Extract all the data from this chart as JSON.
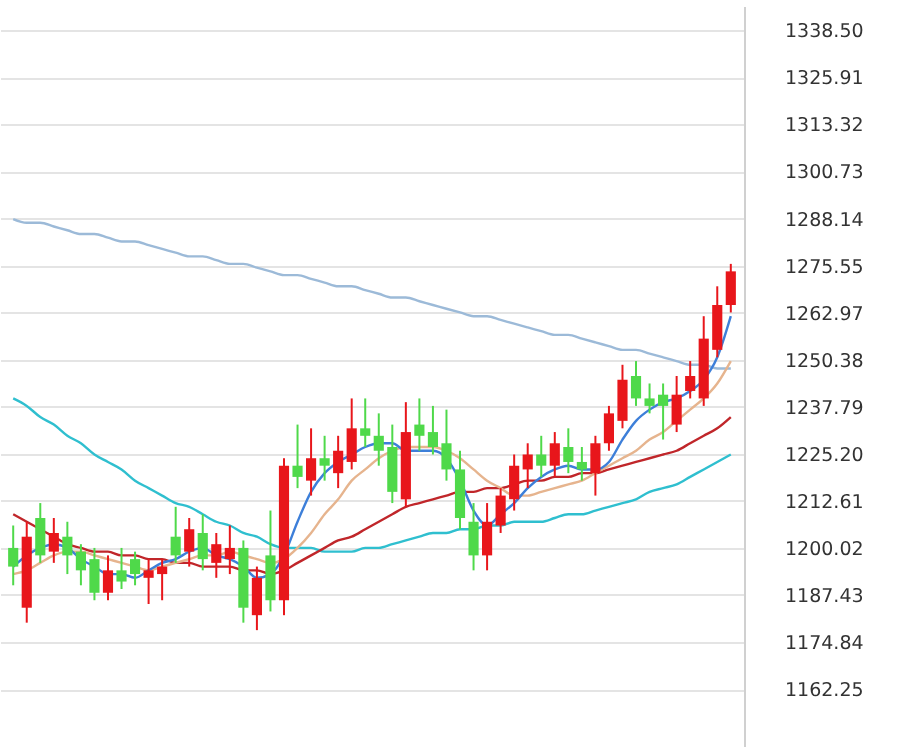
{
  "chart_data": {
    "type": "candlestick",
    "categories": [
      null,
      null,
      null,
      null,
      null,
      null,
      null,
      null,
      null,
      null,
      null,
      null,
      null,
      null,
      null,
      null,
      null,
      null,
      null,
      null,
      null,
      null,
      null,
      null,
      null,
      null,
      null,
      null,
      null,
      null,
      null,
      null,
      null,
      null,
      null,
      null,
      null,
      null,
      null,
      null,
      null,
      null,
      null,
      null,
      null,
      null,
      null,
      null,
      null,
      null,
      null,
      null,
      null,
      null
    ],
    "ohlc": [
      [
        1200,
        1206,
        1190,
        1195
      ],
      [
        1184,
        1207,
        1180,
        1203
      ],
      [
        1208,
        1212,
        1196,
        1198
      ],
      [
        1199,
        1208,
        1196,
        1204
      ],
      [
        1203,
        1207,
        1193,
        1198
      ],
      [
        1199,
        1201,
        1190,
        1194
      ],
      [
        1197,
        1200,
        1186,
        1188
      ],
      [
        1188,
        1198,
        1186,
        1194
      ],
      [
        1194,
        1200,
        1189,
        1191
      ],
      [
        1197,
        1199,
        1190,
        1193
      ],
      [
        1192,
        1197,
        1185,
        1194
      ],
      [
        1193,
        1197,
        1186,
        1195
      ],
      [
        1203,
        1211,
        1196,
        1198
      ],
      [
        1199,
        1208,
        1195,
        1205
      ],
      [
        1204,
        1209,
        1194,
        1197
      ],
      [
        1196,
        1204,
        1192,
        1201
      ],
      [
        1197,
        1206,
        1193,
        1200
      ],
      [
        1200,
        1202,
        1180,
        1184
      ],
      [
        1182,
        1195,
        1178,
        1192
      ],
      [
        1198,
        1210,
        1183,
        1186
      ],
      [
        1186,
        1224,
        1182,
        1222
      ],
      [
        1222,
        1233,
        1216,
        1219
      ],
      [
        1218,
        1232,
        1214,
        1224
      ],
      [
        1224,
        1230,
        1218,
        1222
      ],
      [
        1220,
        1230,
        1216,
        1226
      ],
      [
        1223,
        1240,
        1221,
        1232
      ],
      [
        1232,
        1240,
        1227,
        1230
      ],
      [
        1230,
        1236,
        1222,
        1226
      ],
      [
        1227,
        1233,
        1212,
        1215
      ],
      [
        1213,
        1239,
        1211,
        1231
      ],
      [
        1233,
        1240,
        1226,
        1230
      ],
      [
        1231,
        1238,
        1225,
        1227
      ],
      [
        1228,
        1237,
        1218,
        1221
      ],
      [
        1221,
        1226,
        1205,
        1208
      ],
      [
        1207,
        1212,
        1194,
        1198
      ],
      [
        1198,
        1212,
        1194,
        1207
      ],
      [
        1206,
        1216,
        1204,
        1214
      ],
      [
        1213,
        1225,
        1210,
        1222
      ],
      [
        1221,
        1228,
        1216,
        1225
      ],
      [
        1225,
        1230,
        1219,
        1222
      ],
      [
        1222,
        1231,
        1219,
        1228
      ],
      [
        1227,
        1232,
        1220,
        1223
      ],
      [
        1223,
        1227,
        1218,
        1221
      ],
      [
        1220,
        1230,
        1214,
        1228
      ],
      [
        1228,
        1238,
        1226,
        1236
      ],
      [
        1234,
        1249,
        1232,
        1245
      ],
      [
        1246,
        1250,
        1238,
        1240
      ],
      [
        1240,
        1244,
        1236,
        1238
      ],
      [
        1241,
        1244,
        1229,
        1238
      ],
      [
        1233,
        1246,
        1231,
        1241
      ],
      [
        1242,
        1250,
        1240,
        1246
      ],
      [
        1240,
        1262,
        1238,
        1256
      ],
      [
        1253,
        1270,
        1251,
        1265
      ],
      [
        1265,
        1276,
        1263,
        1274
      ]
    ],
    "colors": [
      "#4fd94a",
      "#e8161b",
      "#4fd94a",
      "#e8161b",
      "#4fd94a",
      "#4fd94a",
      "#4fd94a",
      "#e8161b",
      "#4fd94a",
      "#4fd94a",
      "#e8161b",
      "#e8161b",
      "#4fd94a",
      "#e8161b",
      "#4fd94a",
      "#e8161b",
      "#e8161b",
      "#4fd94a",
      "#e8161b",
      "#4fd94a",
      "#e8161b",
      "#4fd94a",
      "#e8161b",
      "#4fd94a",
      "#e8161b",
      "#e8161b",
      "#4fd94a",
      "#4fd94a",
      "#4fd94a",
      "#e8161b",
      "#4fd94a",
      "#4fd94a",
      "#4fd94a",
      "#4fd94a",
      "#4fd94a",
      "#e8161b",
      "#e8161b",
      "#e8161b",
      "#e8161b",
      "#4fd94a",
      "#e8161b",
      "#4fd94a",
      "#4fd94a",
      "#e8161b",
      "#e8161b",
      "#e8161b",
      "#4fd94a",
      "#4fd94a",
      "#4fd94a",
      "#e8161b",
      "#e8161b",
      "#e8161b",
      "#e8161b",
      "#e8161b"
    ],
    "series": [
      {
        "type": "line",
        "color": "#9cbad8",
        "values": [
          1288,
          1287,
          1287,
          1286,
          1285,
          1284,
          1284,
          1283,
          1282,
          1282,
          1281,
          1280,
          1279,
          1278,
          1278,
          1277,
          1276,
          1276,
          1275,
          1274,
          1273,
          1273,
          1272,
          1271,
          1270,
          1270,
          1269,
          1268,
          1267,
          1267,
          1266,
          1265,
          1264,
          1263,
          1262,
          1262,
          1261,
          1260,
          1259,
          1258,
          1257,
          1257,
          1256,
          1255,
          1254,
          1253,
          1253,
          1252,
          1251,
          1250,
          1249,
          1249,
          1248,
          1248
        ]
      },
      {
        "type": "line",
        "color": "#2fbfcf",
        "values": [
          1240,
          1238,
          1235,
          1233,
          1230,
          1228,
          1225,
          1223,
          1221,
          1218,
          1216,
          1214,
          1212,
          1211,
          1209,
          1207,
          1206,
          1204,
          1203,
          1201,
          1200,
          1200,
          1200,
          1199,
          1199,
          1199,
          1200,
          1200,
          1201,
          1202,
          1203,
          1204,
          1204,
          1205,
          1205,
          1206,
          1206,
          1207,
          1207,
          1207,
          1208,
          1209,
          1209,
          1210,
          1211,
          1212,
          1213,
          1215,
          1216,
          1217,
          1219,
          1221,
          1223,
          1225
        ]
      },
      {
        "type": "line",
        "color": "#c0262a",
        "values": [
          1209,
          1207,
          1205,
          1203,
          1201,
          1200,
          1199,
          1199,
          1198,
          1198,
          1197,
          1197,
          1196,
          1196,
          1195,
          1195,
          1195,
          1194,
          1194,
          1193,
          1194,
          1196,
          1198,
          1200,
          1202,
          1203,
          1205,
          1207,
          1209,
          1211,
          1212,
          1213,
          1214,
          1215,
          1215,
          1216,
          1216,
          1217,
          1218,
          1218,
          1219,
          1219,
          1220,
          1220,
          1221,
          1222,
          1223,
          1224,
          1225,
          1226,
          1228,
          1230,
          1232,
          1235
        ]
      },
      {
        "type": "line",
        "color": "#e6b48e",
        "values": [
          1193,
          1194,
          1196,
          1198,
          1199,
          1199,
          1198,
          1197,
          1196,
          1195,
          1194,
          1195,
          1196,
          1197,
          1198,
          1198,
          1199,
          1198,
          1197,
          1196,
          1197,
          1200,
          1204,
          1209,
          1213,
          1218,
          1221,
          1224,
          1226,
          1227,
          1227,
          1227,
          1226,
          1224,
          1221,
          1218,
          1216,
          1214,
          1214,
          1215,
          1216,
          1217,
          1218,
          1220,
          1222,
          1224,
          1226,
          1229,
          1231,
          1234,
          1237,
          1240,
          1244,
          1250
        ]
      },
      {
        "type": "line",
        "color": "#3d7fd9",
        "values": [
          1195,
          1198,
          1200,
          1201,
          1200,
          1197,
          1195,
          1193,
          1193,
          1192,
          1194,
          1196,
          1197,
          1199,
          1200,
          1198,
          1197,
          1195,
          1192,
          1193,
          1198,
          1207,
          1215,
          1220,
          1223,
          1225,
          1227,
          1228,
          1228,
          1226,
          1226,
          1226,
          1224,
          1218,
          1210,
          1206,
          1209,
          1212,
          1216,
          1219,
          1221,
          1222,
          1221,
          1221,
          1223,
          1229,
          1234,
          1237,
          1239,
          1240,
          1242,
          1245,
          1251,
          1262
        ]
      }
    ],
    "ylim": [
      1147,
      1345
    ],
    "yticks": [
      {
        "value": 1338.5,
        "label": "1338.50"
      },
      1325.91,
      1313.32,
      1300.73,
      1288.14,
      1275.55,
      1262.97,
      1250.38,
      1237.79,
      {
        "value": 1225.2,
        "label": "1225.20"
      },
      1212.61,
      1200.02,
      1187.43,
      1174.84,
      1162.25
    ],
    "grid": "y",
    "tick_labels": "y"
  }
}
